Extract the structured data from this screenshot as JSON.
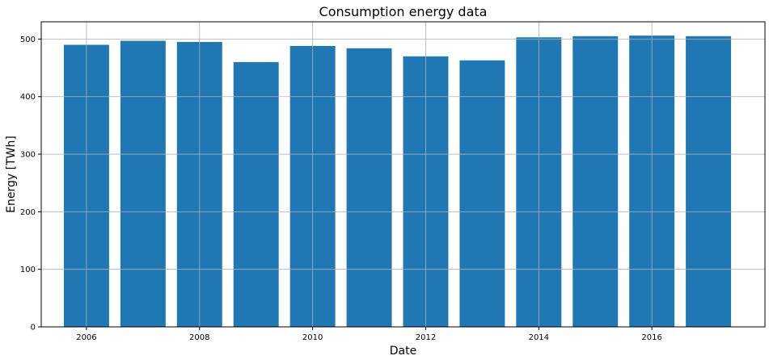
{
  "chart_data": {
    "type": "bar",
    "title": "Consumption energy data",
    "xlabel": "Date",
    "ylabel": "Energy [TWh]",
    "categories": [
      2006,
      2007,
      2008,
      2009,
      2010,
      2011,
      2012,
      2013,
      2014,
      2015,
      2016,
      2017
    ],
    "values": [
      490,
      497,
      495,
      460,
      488,
      484,
      470,
      463,
      503,
      505,
      506,
      505
    ],
    "xlim": [
      2005.2,
      2018.0
    ],
    "ylim": [
      0,
      530
    ],
    "xticks": [
      2006,
      2008,
      2010,
      2012,
      2014,
      2016
    ],
    "yticks": [
      0,
      100,
      200,
      300,
      400,
      500
    ],
    "bar_width_years": 0.8,
    "bar_color": "#1f77b4",
    "grid": true
  }
}
